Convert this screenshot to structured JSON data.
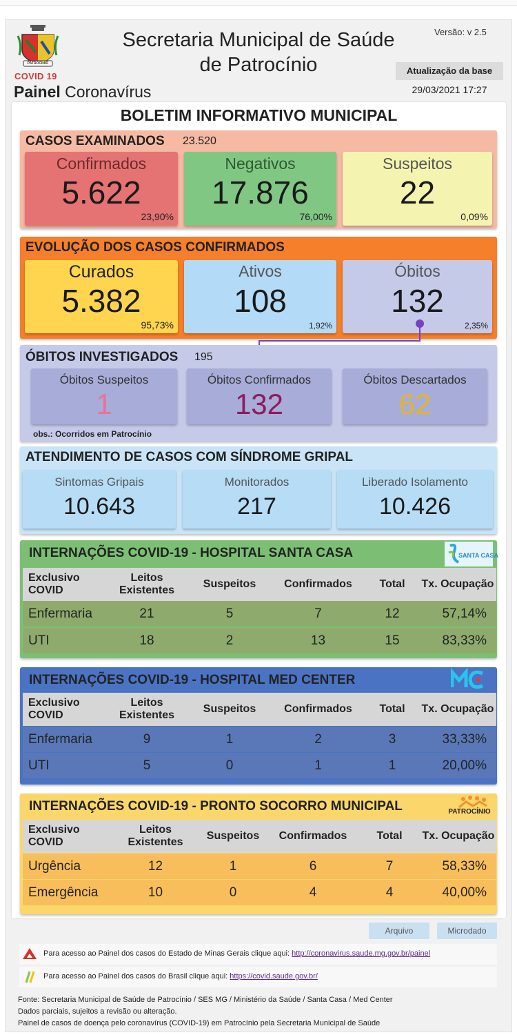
{
  "header": {
    "crest_caption": "PATROCÍNIO",
    "covid_label": "COVID 19",
    "painel_bold": "Painel",
    "painel_rest": " Coronavírus",
    "title_line1": "Secretaria Municipal de Saúde",
    "title_line2": "de Patrocínio",
    "version": "Versão: v 2.5",
    "update_label": "Atualização da base",
    "update_datetime": "29/03/2021 17:27"
  },
  "bulletin_title": "BOLETIM INFORMATIVO MUNICIPAL",
  "examined": {
    "title": "CASOS EXAMINADOS",
    "total": "23.520",
    "cards": [
      {
        "label": "Confirmados",
        "value": "5.622",
        "pct": "23,90%"
      },
      {
        "label": "Negativos",
        "value": "17.876",
        "pct": "76,00%"
      },
      {
        "label": "Suspeitos",
        "value": "22",
        "pct": "0,09%"
      }
    ]
  },
  "evolution": {
    "title": "EVOLUÇÃO DOS CASOS CONFIRMADOS",
    "cards": [
      {
        "label": "Curados",
        "value": "5.382",
        "pct": "95,73%"
      },
      {
        "label": "Ativos",
        "value": "108",
        "pct": "1,92%"
      },
      {
        "label": "Óbitos",
        "value": "132",
        "pct": "2,35%"
      }
    ]
  },
  "deaths": {
    "title": "ÓBITOS INVESTIGADOS",
    "total": "195",
    "cards": [
      {
        "label": "Óbitos Suspeitos",
        "value": "1",
        "color": "#e8739a"
      },
      {
        "label": "Óbitos Confirmados",
        "value": "132",
        "color": "#8e1b5e"
      },
      {
        "label": "Óbitos Descartados",
        "value": "62",
        "color": "#e3b42e"
      }
    ],
    "note": "obs.: Ocorridos em Patrocínio"
  },
  "flu": {
    "title": "ATENDIMENTO DE CASOS COM SÍNDROME GRIPAL",
    "cards": [
      {
        "label": "Sintomas Gripais",
        "value": "10.643"
      },
      {
        "label": "Monitorados",
        "value": "217"
      },
      {
        "label": "Liberado Isolamento",
        "value": "10.426"
      }
    ]
  },
  "hospitals": [
    {
      "title": "INTERNAÇÕES COVID-19 - HOSPITAL SANTA CASA",
      "logo_text": "SANTA CASA",
      "headers": [
        "Exclusivo COVID",
        "Leitos Existentes",
        "Suspeitos",
        "Confirmados",
        "Total",
        "Tx. Ocupação"
      ],
      "rows": [
        [
          "Enfermaria",
          "21",
          "5",
          "7",
          "12",
          "57,14%"
        ],
        [
          "UTI",
          "18",
          "2",
          "13",
          "15",
          "83,33%"
        ]
      ]
    },
    {
      "title": "INTERNAÇÕES COVID-19 - HOSPITAL MED CENTER",
      "logo_text": "MC",
      "headers": [
        "Exclusivo COVID",
        "Leitos Existentes",
        "Suspeitos",
        "Confirmados",
        "Total",
        "Tx. Ocupação"
      ],
      "rows": [
        [
          "Enfermaria",
          "9",
          "1",
          "2",
          "3",
          "33,33%"
        ],
        [
          "UTI",
          "5",
          "0",
          "1",
          "1",
          "20,00%"
        ]
      ]
    },
    {
      "title": "INTERNAÇÕES COVID-19 - PRONTO SOCORRO MUNICIPAL",
      "logo_text": "PATROCÍNIO",
      "headers": [
        "Exclusivo COVID",
        "Leitos Existentes",
        "Suspeitos",
        "Confirmados",
        "Total",
        "Tx. Ocupação"
      ],
      "rows": [
        [
          "Urgência",
          "12",
          "1",
          "6",
          "7",
          "58,33%"
        ],
        [
          "Emergência",
          "10",
          "0",
          "4",
          "4",
          "40,00%"
        ]
      ]
    }
  ],
  "buttons": {
    "arquivo": "Arquivo",
    "microdado": "Microdado"
  },
  "links": [
    {
      "text": "Para acesso ao Painel dos casos do Estado de Minas Gerais clique aqui: ",
      "url": "http://coronavirus.saude.mg.gov.br/painel"
    },
    {
      "text": "Para acesso ao Painel dos casos do Brasil clique aqui: ",
      "url": "https://covid.saude.gov.br/"
    }
  ],
  "footer": {
    "line1": "Fonte: Secretaria Municipal de Saúde de Patrocínio / SES MG / Ministério da Saúde / Santa Casa / Med Center",
    "line2": "Dados parciais, sujeitos a revisão ou alteração.",
    "line3": "Painel de casos de doença pelo coronavírus (COVID-19) em Patrocínio pela Secretaria Municipal de Saúde"
  },
  "colors": {
    "examined_bg": "#f6b9a3",
    "confirmados": "#e57373",
    "negativos": "#81c784",
    "suspeitos": "#f4f4b0",
    "evolution_bg": "#f57f2a",
    "curados": "#ffd54f",
    "ativos": "#b3dbf7",
    "obitos": "#c5cae9",
    "deaths_bg": "#c5cae9",
    "deaths_card": "#a7acd8",
    "flu_bg": "#c9e4f7",
    "flu_card": "#b7dcf6",
    "santa_bg": "#7cbf74",
    "santa_row": "#8eab6d",
    "med_bg": "#4a73c3",
    "med_row": "#5a78b8",
    "ps_bg": "#fbd66b",
    "ps_row": "#f8be5c",
    "connector": "#7b3fc4"
  }
}
